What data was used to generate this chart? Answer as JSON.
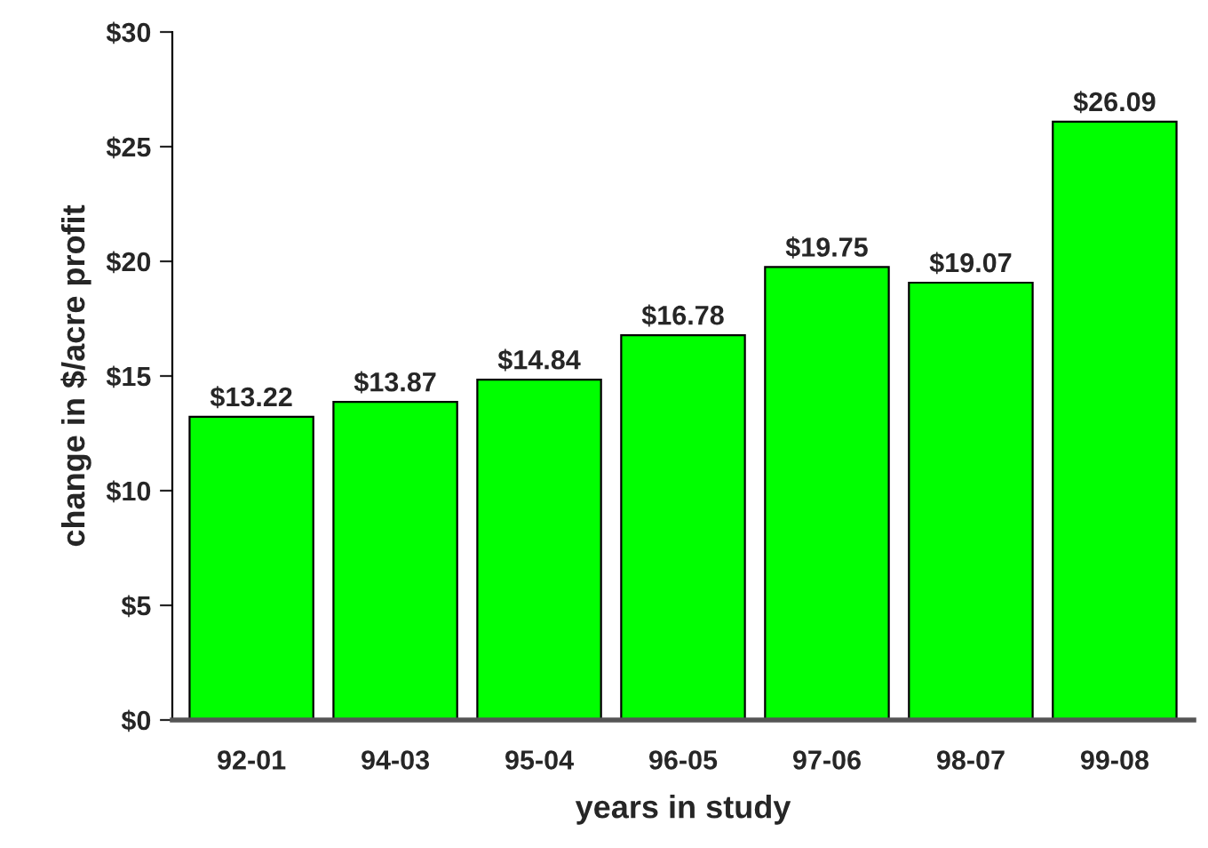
{
  "chart_data": {
    "type": "bar",
    "xlabel": "years in study",
    "ylabel": "change in $/acre profit",
    "categories": [
      "92-01",
      "94-03",
      "95-04",
      "96-05",
      "97-06",
      "98-07",
      "99-08"
    ],
    "values": [
      13.22,
      13.87,
      14.84,
      16.78,
      19.75,
      19.07,
      26.09
    ],
    "value_labels": [
      "$13.22",
      "$13.87",
      "$14.84",
      "$16.78",
      "$19.75",
      "$19.07",
      "$26.09"
    ],
    "color": "#00ff00",
    "ylim": [
      0,
      30
    ],
    "yticks": [
      {
        "value": 0,
        "label": "$0"
      },
      {
        "value": 5,
        "label": "$5"
      },
      {
        "value": 10,
        "label": "$10"
      },
      {
        "value": 15,
        "label": "$15"
      },
      {
        "value": 20,
        "label": "$20"
      },
      {
        "value": 25,
        "label": "$25"
      },
      {
        "value": 30,
        "label": "$30"
      }
    ],
    "grid": false,
    "legend": false
  }
}
